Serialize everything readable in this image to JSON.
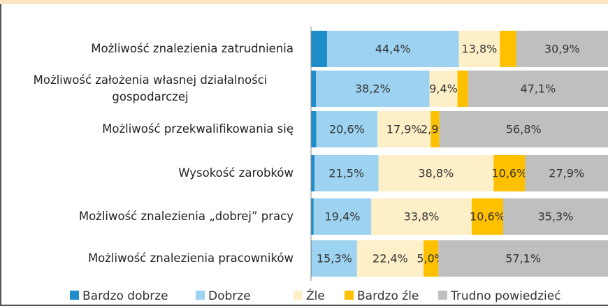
{
  "chart_data": {
    "type": "stacked-bar-horizontal",
    "categories": [
      "Możliwość znalezienia zatrudnienia",
      "Możliwość założenia własnej działalności gospodarczej",
      "Możliwość przekwalifikowania się",
      "Wysokość zarobków",
      "Możliwość znalezienia „dobrej” pracy",
      "Możliwość znalezienia pracowników"
    ],
    "xlim": [
      0,
      100
    ],
    "series": [
      {
        "name": "Bardzo dobrze",
        "color": "#1f8dc9",
        "values": [
          5.4,
          1.7,
          1.8,
          1.2,
          0.9,
          0.2
        ],
        "value_labels": [
          null,
          null,
          null,
          null,
          null,
          null
        ]
      },
      {
        "name": "Dobrze",
        "color": "#9dd3f0",
        "values": [
          44.4,
          38.2,
          20.6,
          21.5,
          19.4,
          15.3
        ],
        "value_labels": [
          "44,4%",
          "38,2%",
          "20,6%",
          "21,5%",
          "19,4%",
          "15,3%"
        ]
      },
      {
        "name": "Źle",
        "color": "#fdf0c8",
        "values": [
          13.8,
          9.4,
          17.9,
          38.8,
          33.8,
          22.4
        ],
        "value_labels": [
          "13,8%",
          "9,4%",
          "17,9%",
          "38,8%",
          "33,8%",
          "22,4%"
        ]
      },
      {
        "name": "Bardzo źle",
        "color": "#ffc000",
        "values": [
          5.5,
          3.6,
          2.9,
          10.6,
          10.6,
          5.0
        ],
        "value_labels": [
          null,
          null,
          "2,9%",
          "10,6%",
          "10,6%",
          "5,0%"
        ]
      },
      {
        "name": "Trudno powiedzieć",
        "color": "#bfbfbf",
        "values": [
          30.9,
          47.1,
          56.8,
          27.9,
          35.3,
          57.1
        ],
        "value_labels": [
          "30,9%",
          "47,1%",
          "56,8%",
          "27,9%",
          "35,3%",
          "57,1%"
        ]
      }
    ]
  }
}
